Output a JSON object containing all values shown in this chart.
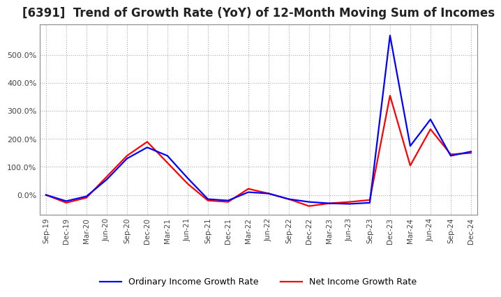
{
  "title": "[6391]  Trend of Growth Rate (YoY) of 12-Month Moving Sum of Incomes",
  "title_fontsize": 12,
  "legend_entries": [
    "Ordinary Income Growth Rate",
    "Net Income Growth Rate"
  ],
  "legend_colors": [
    "#0000FF",
    "#FF0000"
  ],
  "x_labels": [
    "Sep-19",
    "Dec-19",
    "Mar-20",
    "Jun-20",
    "Sep-20",
    "Dec-20",
    "Mar-21",
    "Jun-21",
    "Sep-21",
    "Dec-21",
    "Mar-22",
    "Jun-22",
    "Sep-22",
    "Dec-22",
    "Mar-23",
    "Jun-23",
    "Sep-23",
    "Dec-23",
    "Mar-24",
    "Jun-24",
    "Sep-24",
    "Dec-24"
  ],
  "ordinary_income": [
    0.0,
    -22.0,
    -5.0,
    55.0,
    130.0,
    170.0,
    140.0,
    60.0,
    -15.0,
    -20.0,
    10.0,
    5.0,
    -15.0,
    -25.0,
    -30.0,
    -32.0,
    -28.0,
    570.0,
    175.0,
    270.0,
    140.0,
    155.0
  ],
  "net_income": [
    0.0,
    -28.0,
    -10.0,
    65.0,
    140.0,
    190.0,
    115.0,
    40.0,
    -20.0,
    -25.0,
    22.0,
    5.0,
    -15.0,
    -40.0,
    -30.0,
    -25.0,
    -18.0,
    355.0,
    105.0,
    235.0,
    145.0,
    150.0
  ],
  "ylim": [
    -70,
    610
  ],
  "yticks": [
    0,
    100,
    200,
    300,
    400,
    500
  ],
  "background_color": "#ffffff",
  "grid_color": "#aaaaaa",
  "line_width": 1.6
}
